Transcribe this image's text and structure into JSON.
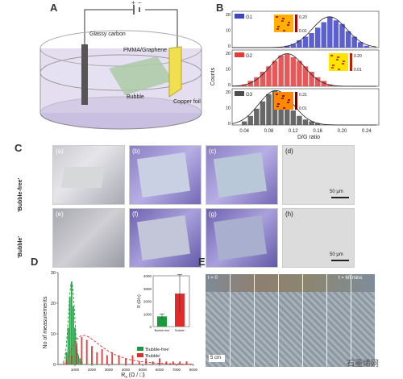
{
  "panels": {
    "a": {
      "letter": "A",
      "labels": {
        "plus": "+",
        "minus": "−",
        "glassy": "Glassy carbon",
        "pmma": "PMMA/Graphene",
        "bubble": "Bubble",
        "copper": "Copper foil"
      }
    },
    "b": {
      "letter": "B",
      "ylabel": "Counts",
      "xlabel": "D/G ratio",
      "groups": [
        {
          "name": "G1",
          "color": "#3f43c8",
          "inset_max": "0.20",
          "inset_min": "0.01"
        },
        {
          "name": "G2",
          "color": "#e43b3b",
          "inset_max": "0.20",
          "inset_min": "0.01"
        },
        {
          "name": "G3",
          "color": "#4d4d4d",
          "inset_max": "0.31",
          "inset_min": "0.01"
        }
      ],
      "yticks_top": [
        "20",
        "10",
        "0"
      ],
      "yticks_mid": [
        "20",
        "10",
        "0"
      ],
      "yticks_bot": [
        "20",
        "10",
        "0"
      ]
    },
    "c": {
      "letter": "C",
      "row1": "'Bubble-free'",
      "row2": "'Bubble'",
      "subs": [
        "(a)",
        "(b)",
        "(c)",
        "(d)",
        "(e)",
        "(f)",
        "(g)",
        "(h)"
      ],
      "scale": "50 μm"
    },
    "d": {
      "letter": "D",
      "ylabel": "No of measurements",
      "xlabel": "R",
      "xlabel_sub": "s",
      "xlabel_unit": " (Ω / □)",
      "legend_free": "'Bubble-free'",
      "legend_bubble": "'Bubble'",
      "inset_ylabel": "R (Ω/□)",
      "inset_cats": [
        "'Bubble-free'",
        "'Bubble'"
      ],
      "inset_yticks": [
        "4000",
        "3000",
        "2000",
        "1000",
        "0"
      ]
    },
    "e": {
      "letter": "E",
      "t0": "t = 0",
      "t60": "t = 60 mins",
      "scale": "5 cm"
    }
  },
  "chart_data": [
    {
      "type": "bar",
      "title": "",
      "xlabel": "D/G ratio",
      "ylabel": "Counts",
      "xlim": [
        0.02,
        0.26
      ],
      "ylim": [
        0,
        20
      ],
      "xticks": [
        "0.04",
        "0.08",
        "0.12",
        "0.16",
        "0.20",
        "0.24"
      ],
      "series": [
        {
          "name": "G1",
          "x": [
            0.11,
            0.12,
            0.13,
            0.14,
            0.15,
            0.16,
            0.17,
            0.18,
            0.19,
            0.2,
            0.21,
            0.22,
            0.23,
            0.24
          ],
          "values": [
            1,
            2,
            4,
            6,
            8,
            11,
            14,
            17,
            15,
            13,
            9,
            6,
            3,
            1
          ]
        },
        {
          "name": "G2",
          "x": [
            0.04,
            0.05,
            0.06,
            0.07,
            0.08,
            0.09,
            0.1,
            0.11,
            0.12,
            0.13,
            0.14,
            0.15,
            0.16,
            0.17,
            0.18
          ],
          "values": [
            1,
            3,
            5,
            8,
            11,
            14,
            17,
            18,
            16,
            14,
            11,
            8,
            5,
            3,
            1
          ]
        },
        {
          "name": "G3",
          "x": [
            0.04,
            0.05,
            0.06,
            0.07,
            0.08,
            0.09,
            0.1,
            0.11,
            0.12,
            0.13,
            0.14,
            0.15,
            0.16
          ],
          "values": [
            2,
            5,
            9,
            13,
            17,
            19,
            16,
            12,
            8,
            5,
            3,
            2,
            1
          ]
        }
      ]
    },
    {
      "type": "bar",
      "title": "",
      "xlabel": "Rs (Ω / □)",
      "ylabel": "No of measurements",
      "xlim": [
        0,
        8000
      ],
      "ylim": [
        0,
        30
      ],
      "xticks": [
        "1000",
        "2000",
        "3000",
        "4000",
        "5000",
        "6000",
        "7000",
        "8000"
      ],
      "yticks": [
        "0",
        "10",
        "20",
        "30"
      ],
      "series": [
        {
          "name": "'Bubble-free'",
          "x": [
            500,
            600,
            700,
            800,
            900,
            1000,
            1100,
            1200,
            1300,
            1400
          ],
          "values": [
            4,
            12,
            22,
            27,
            19,
            12,
            6,
            3,
            2,
            1
          ]
        },
        {
          "name": "'Bubble'",
          "x": [
            500,
            800,
            1100,
            1400,
            1700,
            2000,
            2300,
            2600,
            2900,
            3200,
            3600,
            4000,
            4400,
            4800,
            5200,
            5600,
            6000,
            6400,
            6800,
            7200,
            7600
          ],
          "values": [
            1,
            3,
            7,
            9,
            8,
            6,
            4,
            5,
            3,
            4,
            3,
            2,
            3,
            1,
            2,
            1,
            2,
            1,
            1,
            1,
            1
          ]
        }
      ]
    },
    {
      "type": "bar",
      "title": "",
      "ylabel": "R (Ω/□)",
      "categories": [
        "'Bubble-free'",
        "'Bubble'"
      ],
      "values": [
        800,
        2600
      ],
      "error": [
        200,
        1500
      ],
      "ylim": [
        0,
        4000
      ]
    }
  ],
  "watermark": {
    "text": "石墨烯网"
  }
}
